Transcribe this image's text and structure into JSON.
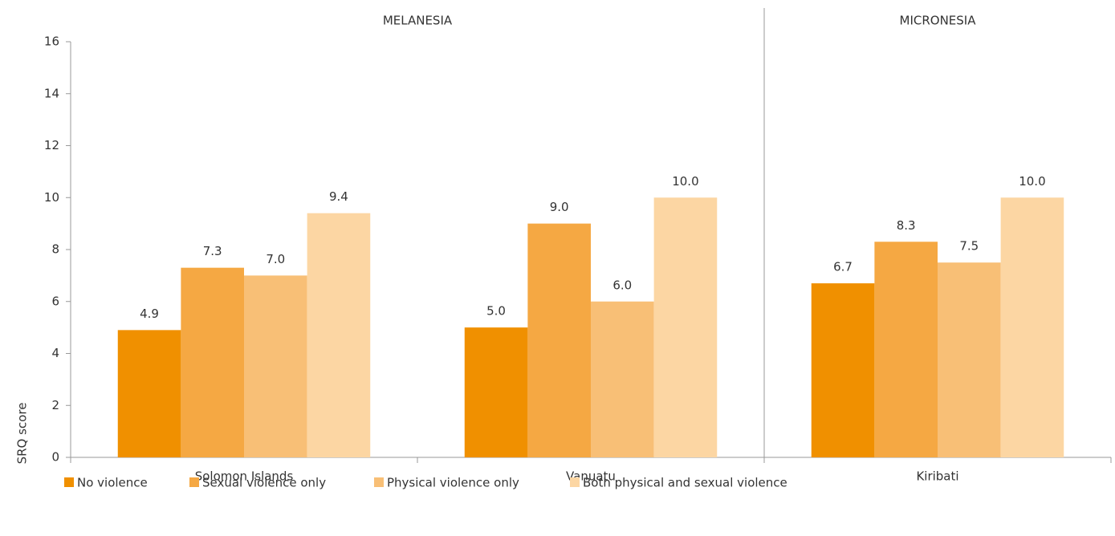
{
  "chart_data": {
    "type": "bar",
    "y_label": "SRQ score",
    "regions": [
      {
        "name": "MELANESIA",
        "count": 2
      },
      {
        "name": "MICRONESIA",
        "count": 1
      }
    ],
    "categories": [
      "Solomon Islands",
      "Vanuatu",
      "Kiribati"
    ],
    "series": [
      {
        "name": "No violence",
        "color": "#f09000",
        "values": [
          4.9,
          5.0,
          6.7
        ],
        "value_labels": [
          "4.9",
          "5.0",
          "6.7"
        ]
      },
      {
        "name": "Sexual violence only",
        "color": "#f5a843",
        "values": [
          7.3,
          9.0,
          8.3
        ],
        "value_labels": [
          "7.3",
          "9.0",
          "8.3"
        ]
      },
      {
        "name": "Physical violence only",
        "color": "#f8bf76",
        "values": [
          7.0,
          6.0,
          7.5
        ],
        "value_labels": [
          "7.0",
          "6.0",
          "7.5"
        ]
      },
      {
        "name": "Both physical and sexual violence",
        "color": "#fcd6a3",
        "values": [
          9.4,
          10.0,
          10.0
        ],
        "value_labels": [
          "9.4",
          "10.0",
          "10.0"
        ]
      }
    ],
    "ylim": [
      0,
      16
    ],
    "yticks": [
      0,
      2,
      4,
      6,
      8,
      10,
      12,
      14,
      16
    ],
    "grid": false,
    "legend": "bottom"
  }
}
